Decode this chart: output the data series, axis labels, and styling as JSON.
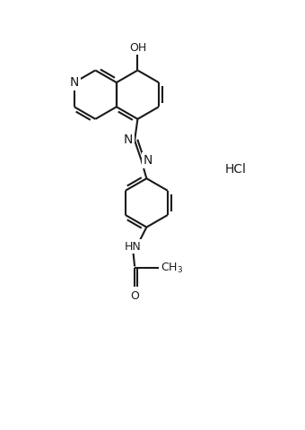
{
  "background_color": "#ffffff",
  "line_color": "#1a1a1a",
  "line_width": 1.5,
  "font_size": 9,
  "fig_width": 3.4,
  "fig_height": 4.8,
  "dpi": 100,
  "xlim": [
    -1,
    9
  ],
  "ylim": [
    0,
    13.5
  ]
}
